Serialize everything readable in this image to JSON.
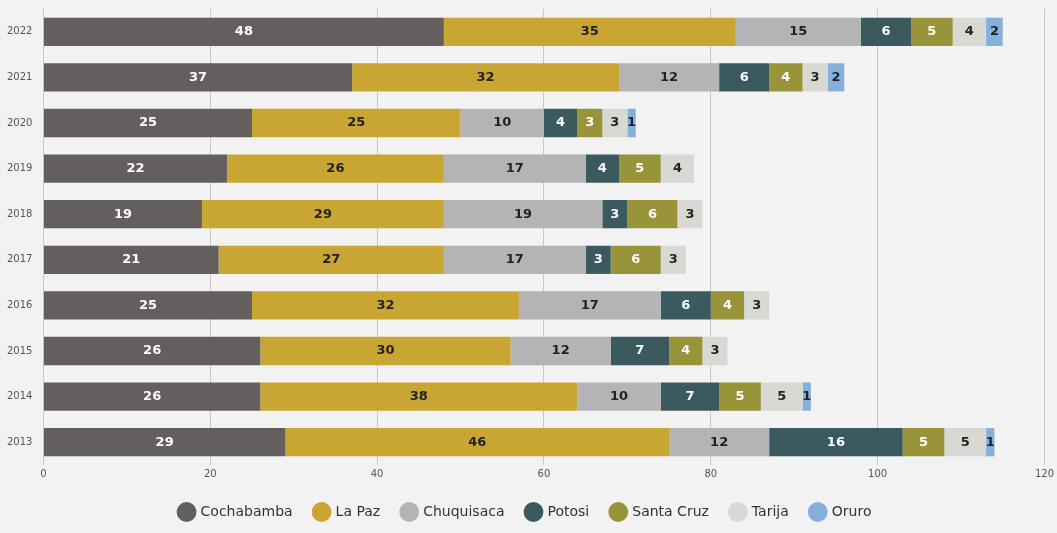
{
  "chart_data": {
    "type": "bar",
    "orientation": "horizontal",
    "stacked": true,
    "categories": [
      "2022",
      "2021",
      "2020",
      "2019",
      "2018",
      "2017",
      "2016",
      "2015",
      "2014",
      "2013"
    ],
    "series": [
      {
        "name": "Cochabamba",
        "color": "#655e5f",
        "values": [
          48,
          37,
          25,
          22,
          19,
          21,
          25,
          26,
          26,
          29
        ],
        "value_labels": [
          "48",
          "37",
          "25",
          "22",
          "19",
          "21",
          "25",
          "26",
          "26",
          "29"
        ]
      },
      {
        "name": "La Paz",
        "color": "#c9a634",
        "values": [
          35,
          32,
          25,
          26,
          29,
          27,
          32,
          30,
          38,
          46
        ],
        "value_labels": [
          "35",
          "32",
          "25",
          "26",
          "29",
          "27",
          "32",
          "30",
          "38",
          "46"
        ]
      },
      {
        "name": "Chuquisaca",
        "color": "#b4b3b6",
        "values": [
          15,
          12,
          10,
          17,
          19,
          17,
          17,
          12,
          10,
          12
        ],
        "value_labels": [
          "15",
          "12",
          "10",
          "17",
          "19",
          "17",
          "17",
          "12",
          "10",
          "12"
        ]
      },
      {
        "name": "Potosi",
        "color": "#3b5a60",
        "values": [
          6,
          6,
          4,
          4,
          3,
          3,
          6,
          7,
          7,
          16
        ],
        "value_labels": [
          "6",
          "6",
          "4",
          "4",
          "3",
          "3",
          "6",
          "7",
          "7",
          "16"
        ]
      },
      {
        "name": "Santa Cruz",
        "color": "#99943a",
        "values": [
          5,
          4,
          3,
          5,
          6,
          6,
          4,
          4,
          5,
          5
        ],
        "value_labels": [
          "5",
          "4",
          "3",
          "5",
          "6",
          "6",
          "4",
          "4",
          "5",
          "5"
        ]
      },
      {
        "name": "Tarija",
        "color": "#d8d9d3",
        "values": [
          4,
          3,
          3,
          4,
          3,
          3,
          3,
          3,
          5,
          5
        ],
        "value_labels": [
          "4",
          "3",
          "3",
          "4",
          "3",
          "3",
          "3",
          "3",
          "5",
          "5"
        ]
      },
      {
        "name": "Oruro",
        "color": "#86b0dc",
        "values": [
          2,
          2,
          1,
          null,
          null,
          null,
          null,
          null,
          1,
          1
        ],
        "value_labels": [
          "2",
          "2",
          "1",
          null,
          null,
          null,
          null,
          null,
          "1",
          "1"
        ]
      }
    ],
    "xlim": [
      0,
      120
    ],
    "xticks": [
      0,
      20,
      40,
      60,
      80,
      100,
      120
    ],
    "grid": "x",
    "legend": "bottom"
  }
}
